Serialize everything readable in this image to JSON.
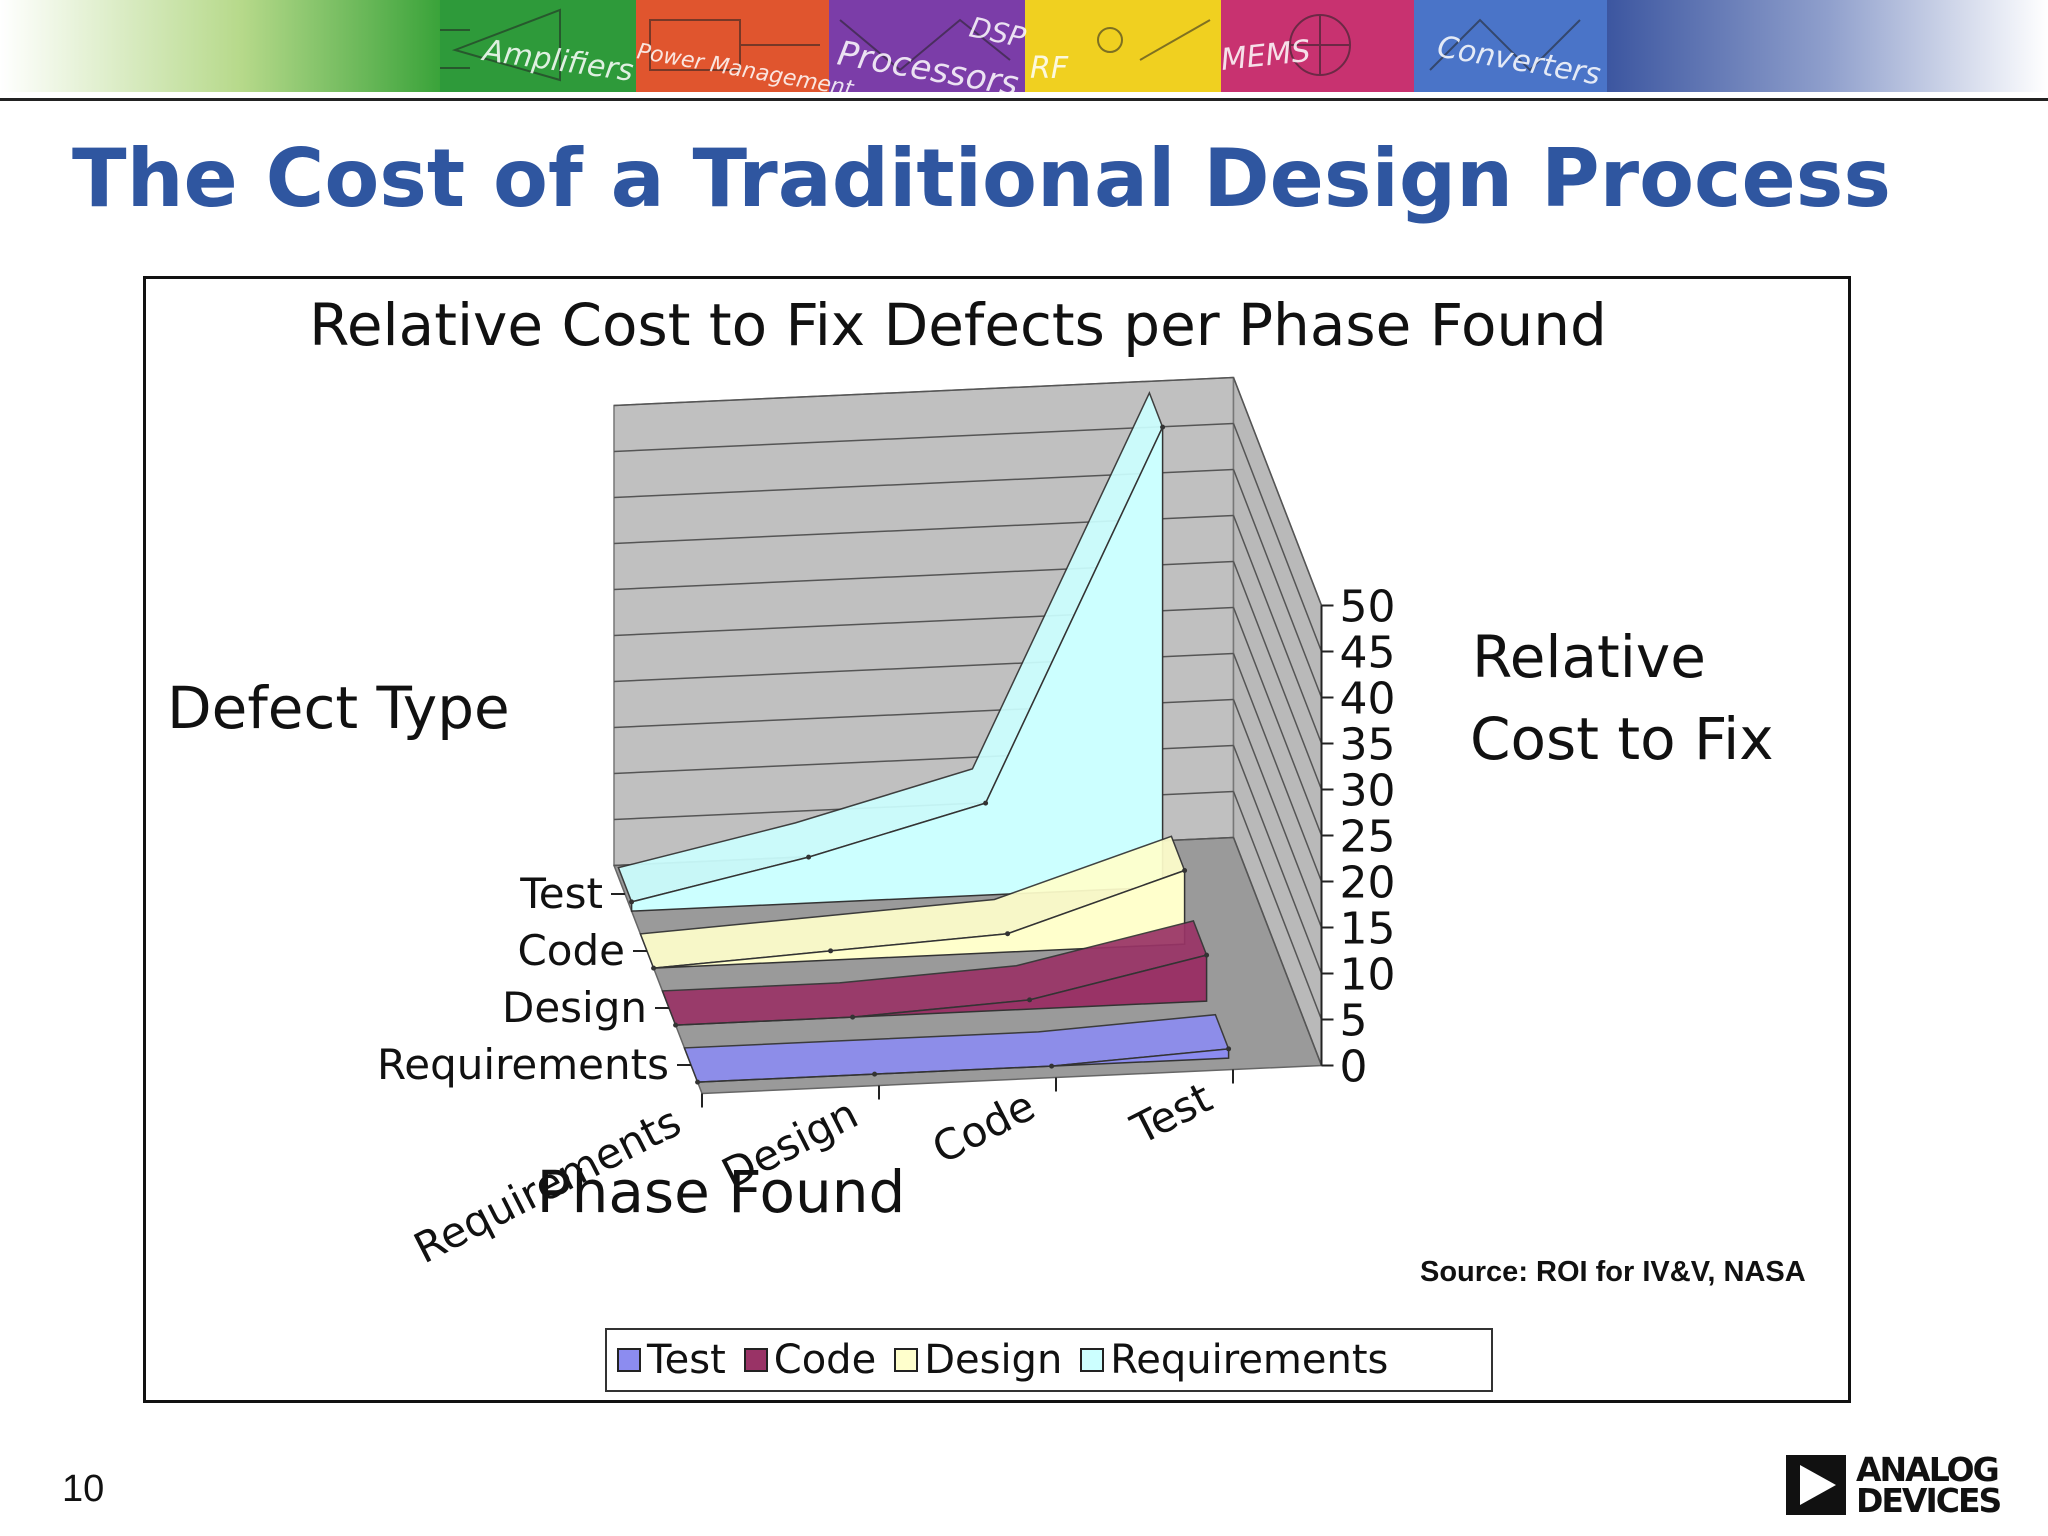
{
  "banner": {
    "segments": [
      "Amplifiers",
      "Power Management",
      "Processors",
      "DSP",
      "RF",
      "MEMS",
      "Converters"
    ]
  },
  "slide": {
    "title": "The Cost of a Traditional Design Process",
    "page_number": "10",
    "source": "Source: ROI for IV&V, NASA",
    "logo_line1": "ANALOG",
    "logo_line2": "DEVICES"
  },
  "chart_data": {
    "type": "area",
    "style": "3d",
    "title": "Relative Cost to Fix Defects per Phase Found",
    "xlabel": "Phase Found",
    "depth_label": "Defect Type",
    "ylabel": "Relative Cost to Fix",
    "categories": [
      "Requirements",
      "Design",
      "Code",
      "Test"
    ],
    "depth_categories": [
      "Requirements",
      "Design",
      "Code",
      "Test"
    ],
    "ylim": [
      0,
      50
    ],
    "yticks": [
      0,
      5,
      10,
      15,
      20,
      25,
      30,
      35,
      40,
      45,
      50
    ],
    "legend_position": "bottom",
    "series": [
      {
        "name": "Test",
        "color": "#8c8cf0",
        "values": [
          0,
          0,
          0,
          1
        ]
      },
      {
        "name": "Code",
        "color": "#993366",
        "values": [
          0,
          0,
          1,
          5
        ]
      },
      {
        "name": "Design",
        "color": "#ffffcc",
        "values": [
          0,
          1,
          2,
          8
        ]
      },
      {
        "name": "Requirements",
        "color": "#ccffff",
        "values": [
          1,
          5,
          10,
          50
        ]
      }
    ]
  }
}
